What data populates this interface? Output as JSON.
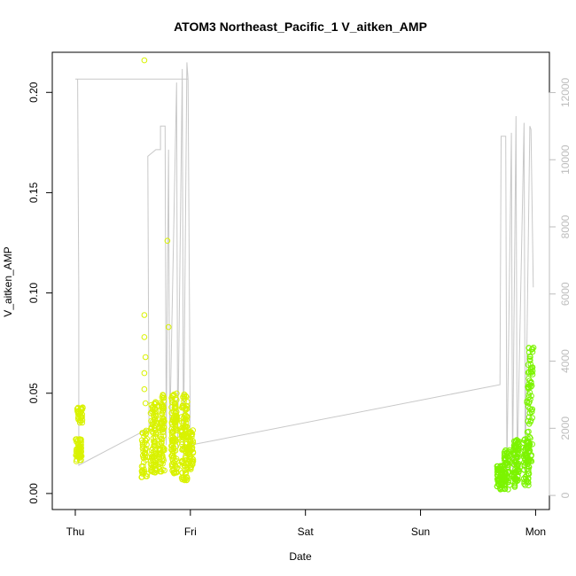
{
  "chart_data": {
    "type": "scatter",
    "title": "ATOM3 Northeast_Pacific_1 V_aitken_AMP",
    "xlabel": "Date",
    "ylabel": "V_aitken_AMP",
    "x_ticks": [
      "Thu",
      "Fri",
      "Sat",
      "Sun",
      "Mon"
    ],
    "x_tick_values": [
      0,
      1,
      2,
      3,
      4
    ],
    "xlim": [
      -0.2,
      4.12
    ],
    "ylim": [
      -0.008,
      0.22
    ],
    "y_ticks": [
      "0.00",
      "0.05",
      "0.10",
      "0.15",
      "0.20"
    ],
    "y_tick_values": [
      0,
      0.05,
      0.1,
      0.15,
      0.2
    ],
    "y2_ticks": [
      "0",
      "2000",
      "4000",
      "6000",
      "8000",
      "10000",
      "12000"
    ],
    "y2_tick_values": [
      0,
      2000,
      4000,
      6000,
      8000,
      10000,
      12000
    ],
    "y2lim": [
      -420,
      13200
    ],
    "colors": {
      "early_points": "#d9f200",
      "late_points": "#7cf400",
      "altitude_line": "#c8c8c8",
      "axis": "#000000",
      "right_axis": "#bdbdbd"
    },
    "series": [
      {
        "values": [
          {
            "x": 0.03,
            "y": 0.022,
            "n": 60,
            "spread": 0.006
          },
          {
            "x": 0.04,
            "y": 0.039,
            "n": 30,
            "spread": 0.004
          },
          {
            "x": 0.6,
            "y": 0.089
          },
          {
            "x": 0.6,
            "y": 0.078
          },
          {
            "x": 0.61,
            "y": 0.068
          },
          {
            "x": 0.6,
            "y": 0.06
          },
          {
            "x": 0.6,
            "y": 0.052
          },
          {
            "x": 0.61,
            "y": 0.045
          },
          {
            "x": 0.6,
            "y": 0.216
          },
          {
            "x": 0.6,
            "y": 0.02,
            "n": 45,
            "spread": 0.012
          },
          {
            "x": 0.68,
            "y": 0.028,
            "n": 90,
            "spread": 0.018
          },
          {
            "x": 0.75,
            "y": 0.03,
            "n": 90,
            "spread": 0.02
          },
          {
            "x": 0.8,
            "y": 0.126
          },
          {
            "x": 0.81,
            "y": 0.083
          },
          {
            "x": 0.86,
            "y": 0.03,
            "n": 110,
            "spread": 0.02
          },
          {
            "x": 0.95,
            "y": 0.028,
            "n": 110,
            "spread": 0.022
          },
          {
            "x": 1.0,
            "y": 0.022,
            "n": 60,
            "spread": 0.01
          }
        ]
      },
      {
        "values": [
          {
            "x": 3.69,
            "y": 0.008,
            "n": 70,
            "spread": 0.006
          },
          {
            "x": 3.75,
            "y": 0.012,
            "n": 70,
            "spread": 0.01
          },
          {
            "x": 3.83,
            "y": 0.015,
            "n": 90,
            "spread": 0.012
          },
          {
            "x": 3.92,
            "y": 0.016,
            "n": 70,
            "spread": 0.012
          },
          {
            "x": 3.95,
            "y": 0.04,
            "n": 60,
            "spread": 0.025
          },
          {
            "x": 3.96,
            "y": 0.068,
            "n": 15,
            "spread": 0.006
          }
        ]
      },
      {
        "axis": "right",
        "points": [
          [
            0.0,
            12400
          ],
          [
            0.02,
            12400
          ],
          [
            0.03,
            6000
          ],
          [
            0.03,
            900
          ],
          [
            0.64,
            2000
          ],
          [
            0.63,
            10100
          ],
          [
            0.7,
            10300
          ],
          [
            0.74,
            10300
          ],
          [
            0.74,
            11000
          ],
          [
            0.78,
            11000
          ],
          [
            0.79,
            1500
          ],
          [
            0.81,
            10300
          ],
          [
            0.82,
            1800
          ],
          [
            0.88,
            12300
          ],
          [
            0.89,
            1400
          ],
          [
            0.93,
            12700
          ],
          [
            0.94,
            1200
          ],
          [
            0.97,
            12900
          ],
          [
            0.98,
            12400
          ],
          [
            0.98,
            12400
          ],
          [
            0.02,
            12400
          ],
          [
            0.98,
            12400
          ],
          [
            1.0,
            1500
          ],
          [
            3.69,
            3300
          ],
          [
            3.7,
            10700
          ],
          [
            3.74,
            10700
          ],
          [
            3.75,
            700
          ],
          [
            3.79,
            10800
          ],
          [
            3.8,
            700
          ],
          [
            3.83,
            11300
          ],
          [
            3.84,
            700
          ],
          [
            3.9,
            11100
          ],
          [
            3.91,
            700
          ],
          [
            3.95,
            11000
          ],
          [
            3.96,
            10900
          ],
          [
            3.98,
            6200
          ]
        ]
      }
    ]
  }
}
